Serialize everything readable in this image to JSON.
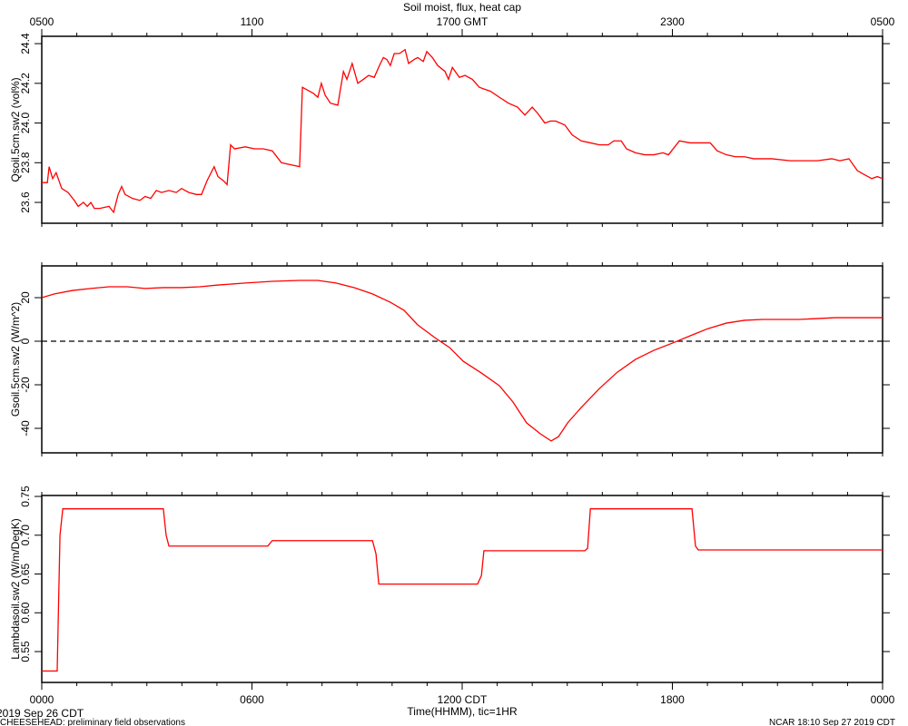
{
  "footer": {
    "date": "2019 Sep 26 CDT",
    "project": "CHEESEHEAD: preliminary field observations",
    "stamp": "NCAR 18:10 Sep 27 2019 CDT"
  },
  "chart_data": [
    {
      "type": "line",
      "title": "Soil moist, flux, heat cap",
      "ylabel": "Qsoil.5cm.sw2 (vol%)",
      "xlim": [
        0,
        24
      ],
      "ylim": [
        23.495,
        24.437
      ],
      "x_minor_interval": 1,
      "yticks": [
        23.6,
        23.8,
        {
          "value": 24,
          "label": "24.0"
        },
        24.2,
        24.4
      ],
      "x2ticks": [
        {
          "value": 0,
          "label": "0500"
        },
        {
          "value": 6,
          "label": "1100"
        },
        {
          "value": 12,
          "label": "1700 GMT"
        },
        {
          "value": 18,
          "label": "2300"
        },
        {
          "value": 24,
          "label": "0500"
        }
      ],
      "x": [
        0,
        0.16,
        0.21,
        0.31,
        0.41,
        0.57,
        0.75,
        0.93,
        1.04,
        1.19,
        1.3,
        1.4,
        1.5,
        1.66,
        1.92,
        2.05,
        2.18,
        2.28,
        2.38,
        2.59,
        2.8,
        2.95,
        3.11,
        3.27,
        3.42,
        3.63,
        3.84,
        3.99,
        4.2,
        4.41,
        4.56,
        4.72,
        4.92,
        5.03,
        5.18,
        5.29,
        5.39,
        5.5,
        5.81,
        6.07,
        6.32,
        6.58,
        6.84,
        7.1,
        7.36,
        7.44,
        7.75,
        7.88,
        7.98,
        8.09,
        8.24,
        8.45,
        8.61,
        8.71,
        8.86,
        9.02,
        9.18,
        9.33,
        9.49,
        9.64,
        9.75,
        9.85,
        9.95,
        10.06,
        10.21,
        10.37,
        10.47,
        10.63,
        10.73,
        10.89,
        10.99,
        11.15,
        11.3,
        11.51,
        11.61,
        11.72,
        11.92,
        12.08,
        12.29,
        12.49,
        12.81,
        13.06,
        13.32,
        13.58,
        13.79,
        14.0,
        14.15,
        14.36,
        14.52,
        14.67,
        14.93,
        15.14,
        15.4,
        15.66,
        15.92,
        16.17,
        16.33,
        16.54,
        16.69,
        16.95,
        17.21,
        17.47,
        17.73,
        17.89,
        18.2,
        18.51,
        19.08,
        19.28,
        19.54,
        19.8,
        20.06,
        20.32,
        20.84,
        21.36,
        21.88,
        22.14,
        22.55,
        22.78,
        23.04,
        23.28,
        23.48,
        23.69,
        23.85,
        24
      ],
      "series": [
        {
          "color": "#ff0000",
          "values": [
            23.7,
            23.7,
            23.78,
            23.72,
            23.75,
            23.67,
            23.65,
            23.61,
            23.58,
            23.6,
            23.58,
            23.6,
            23.57,
            23.57,
            23.58,
            23.55,
            23.64,
            23.68,
            23.64,
            23.62,
            23.61,
            23.63,
            23.62,
            23.66,
            23.65,
            23.66,
            23.65,
            23.67,
            23.65,
            23.64,
            23.64,
            23.71,
            23.78,
            23.73,
            23.71,
            23.69,
            23.89,
            23.87,
            23.88,
            23.87,
            23.87,
            23.86,
            23.8,
            23.79,
            23.78,
            24.18,
            24.15,
            24.13,
            24.2,
            24.14,
            24.1,
            24.09,
            24.26,
            24.22,
            24.3,
            24.2,
            24.22,
            24.24,
            24.23,
            24.29,
            24.33,
            24.32,
            24.29,
            24.35,
            24.35,
            24.37,
            24.3,
            24.32,
            24.33,
            24.31,
            24.36,
            24.33,
            24.29,
            24.26,
            24.22,
            24.28,
            24.23,
            24.24,
            24.22,
            24.18,
            24.16,
            24.13,
            24.1,
            24.08,
            24.04,
            24.08,
            24.05,
            24.0,
            24.01,
            24.01,
            23.99,
            23.94,
            23.91,
            23.9,
            23.89,
            23.89,
            23.91,
            23.91,
            23.87,
            23.85,
            23.84,
            23.84,
            23.85,
            23.84,
            23.91,
            23.9,
            23.9,
            23.86,
            23.84,
            23.83,
            23.83,
            23.82,
            23.82,
            23.81,
            23.81,
            23.81,
            23.82,
            23.81,
            23.82,
            23.76,
            23.74,
            23.72,
            23.73,
            23.72
          ]
        }
      ]
    },
    {
      "type": "line",
      "ylabel": "Gsoil.5cm.sw2 (W/m^2)",
      "xlim": [
        0,
        24
      ],
      "ylim": [
        -51.25,
        34.58
      ],
      "x_minor_interval": 1,
      "hline": 0,
      "yticks": [
        -40,
        -20,
        0,
        20
      ],
      "x": [
        0,
        0.36,
        0.88,
        1.4,
        1.92,
        2.44,
        2.95,
        3.47,
        3.99,
        4.51,
        5.03,
        5.81,
        6.58,
        7.36,
        7.88,
        8.4,
        8.92,
        9.44,
        9.95,
        10.34,
        10.73,
        11.25,
        11.64,
        12.03,
        12.55,
        13.06,
        13.45,
        13.84,
        14.23,
        14.54,
        14.75,
        15.01,
        15.4,
        15.92,
        16.43,
        16.95,
        17.47,
        18.01,
        18.51,
        19.02,
        19.54,
        20.06,
        20.58,
        21.62,
        22.65,
        24
      ],
      "series": [
        {
          "color": "#ff0000",
          "values": [
            20.0,
            21.7,
            23.3,
            24.2,
            25.0,
            25.0,
            24.2,
            24.6,
            24.6,
            25.0,
            25.8,
            26.7,
            27.5,
            27.9,
            27.9,
            26.7,
            24.6,
            21.7,
            17.9,
            14.2,
            7.5,
            1.3,
            -2.9,
            -9.2,
            -14.6,
            -20.4,
            -27.9,
            -37.5,
            -42.5,
            -45.8,
            -43.8,
            -37.5,
            -30.4,
            -21.7,
            -14.2,
            -8.3,
            -4.2,
            -0.8,
            2.5,
            5.8,
            8.3,
            9.6,
            10.0,
            10.0,
            10.8,
            10.8
          ]
        }
      ]
    },
    {
      "type": "line",
      "ylabel": "Lambdasoil.sw2 (W/m/DegK)",
      "xlabel": "Time(HHMM), tic=1HR",
      "xlim": [
        0,
        24
      ],
      "ylim": [
        0.5102,
        0.7512
      ],
      "x_minor_interval": 1,
      "yticks": [
        0.55,
        {
          "value": 0.6,
          "label": "0.60"
        },
        0.65,
        {
          "value": 0.7,
          "label": "0.70"
        },
        0.75
      ],
      "xticks": [
        {
          "value": 0,
          "label": "0000"
        },
        {
          "value": 6,
          "label": "0600"
        },
        {
          "value": 12,
          "label": "1200 CDT"
        },
        {
          "value": 18,
          "label": "1800"
        },
        {
          "value": 24,
          "label": "0000"
        }
      ],
      "x": [
        0,
        0.44,
        0.52,
        0.6,
        3.47,
        3.55,
        3.63,
        6.45,
        6.58,
        9.44,
        9.54,
        9.62,
        12.44,
        12.55,
        12.62,
        15.5,
        15.58,
        15.66,
        18.56,
        18.66,
        18.74,
        24
      ],
      "series": [
        {
          "color": "#ff0000",
          "values": [
            0.525,
            0.525,
            0.7,
            0.734,
            0.734,
            0.7,
            0.686,
            0.686,
            0.693,
            0.693,
            0.676,
            0.637,
            0.637,
            0.648,
            0.68,
            0.68,
            0.683,
            0.734,
            0.734,
            0.686,
            0.681,
            0.681
          ]
        }
      ]
    }
  ]
}
